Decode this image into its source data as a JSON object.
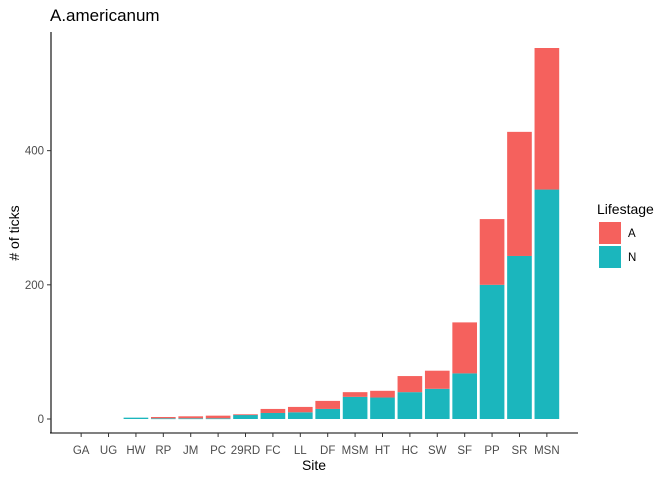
{
  "chart_data": {
    "type": "bar",
    "stacked": true,
    "title": "A.americanum",
    "xlabel": "Site",
    "ylabel": "# of ticks",
    "categories": [
      "GA",
      "UG",
      "HW",
      "RP",
      "JM",
      "PC",
      "29RD",
      "FC",
      "LL",
      "DF",
      "MSM",
      "HT",
      "HC",
      "SW",
      "SF",
      "PP",
      "SR",
      "MSN"
    ],
    "series": [
      {
        "name": "N",
        "color": "#1bb6bd",
        "values": [
          0,
          0,
          2,
          1,
          1,
          1,
          6,
          9,
          10,
          15,
          33,
          32,
          40,
          45,
          68,
          200,
          243,
          342
        ]
      },
      {
        "name": "A",
        "color": "#f5615d",
        "values": [
          0,
          0,
          0,
          2,
          3,
          4,
          1,
          6,
          8,
          12,
          7,
          10,
          24,
          27,
          76,
          98,
          185,
          211
        ]
      }
    ],
    "stack_order": [
      "N",
      "A"
    ],
    "ylim": [
      0,
      553
    ],
    "yticks": [
      0,
      200,
      400
    ],
    "grid": false,
    "legend": {
      "title": "Lifestage",
      "placement": "right",
      "entries": [
        "A",
        "N"
      ]
    }
  }
}
